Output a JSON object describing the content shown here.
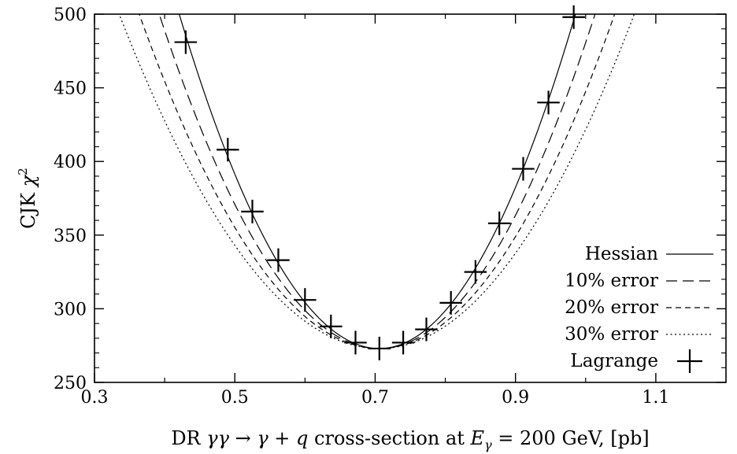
{
  "chart_data": {
    "type": "line",
    "title": "",
    "xlabel": "DR γγ → γ + q cross-section at E_γ = 200 GeV, [pb]",
    "xlabel_parts": {
      "prefix": "DR ",
      "math": "γγ → γ + q",
      "middle": " cross-section at ",
      "e_symbol": "E",
      "e_sub": "γ",
      "suffix": " = 200 GeV, [pb]"
    },
    "ylabel": "CJK χ²",
    "ylabel_parts": {
      "prefix": "CJK ",
      "chi": "χ",
      "sup": "2"
    },
    "xlim": [
      0.3,
      1.2
    ],
    "ylim": [
      250,
      500
    ],
    "x_ticks": [
      0.3,
      0.5,
      0.7,
      0.9,
      1.1
    ],
    "x_tick_labels": [
      "0.3",
      "0.5",
      "0.7",
      "0.9",
      "1.1"
    ],
    "y_ticks": [
      250,
      300,
      350,
      400,
      450,
      500
    ],
    "y_tick_labels": [
      "250",
      "300",
      "350",
      "400",
      "450",
      "500"
    ],
    "legend_position": "bottom-right",
    "minimum": {
      "x": 0.706,
      "y": 273
    },
    "series": [
      {
        "name": "Hessian",
        "style": "solid",
        "tolerance_factor": 1.0
      },
      {
        "name": "10% error",
        "style": "long-dash",
        "tolerance_factor": 1.1
      },
      {
        "name": "20% error",
        "style": "short-dash",
        "tolerance_factor": 1.2
      },
      {
        "name": "30% error",
        "style": "dotted",
        "tolerance_factor": 1.3
      },
      {
        "name": "Lagrange",
        "style": "cross",
        "points": [
          {
            "x": 0.43,
            "y": 481,
            "xerr": 0.016
          },
          {
            "x": 0.49,
            "y": 408,
            "xerr": 0.016
          },
          {
            "x": 0.525,
            "y": 366,
            "xerr": 0.016
          },
          {
            "x": 0.562,
            "y": 333,
            "xerr": 0.016
          },
          {
            "x": 0.6,
            "y": 306,
            "xerr": 0.016
          },
          {
            "x": 0.637,
            "y": 288,
            "xerr": 0.016
          },
          {
            "x": 0.672,
            "y": 277,
            "xerr": 0.016
          },
          {
            "x": 0.706,
            "y": 273,
            "xerr": 0.016
          },
          {
            "x": 0.74,
            "y": 277,
            "xerr": 0.016
          },
          {
            "x": 0.773,
            "y": 286,
            "xerr": 0.016
          },
          {
            "x": 0.808,
            "y": 304,
            "xerr": 0.016
          },
          {
            "x": 0.843,
            "y": 325,
            "xerr": 0.016
          },
          {
            "x": 0.877,
            "y": 358,
            "xerr": 0.016
          },
          {
            "x": 0.911,
            "y": 395,
            "xerr": 0.016
          },
          {
            "x": 0.947,
            "y": 440,
            "xerr": 0.016
          },
          {
            "x": 0.983,
            "y": 498,
            "xerr": 0.016
          }
        ]
      }
    ],
    "colors": {
      "line": "#000000",
      "background": "#ffffff"
    }
  }
}
